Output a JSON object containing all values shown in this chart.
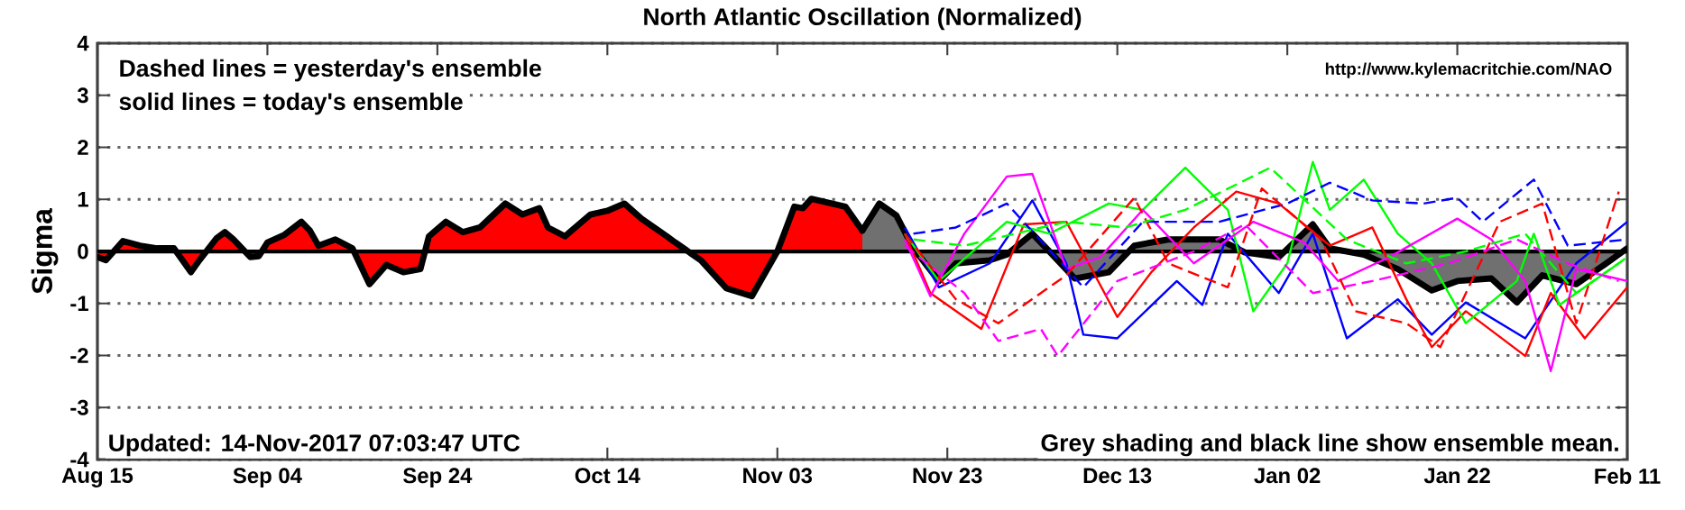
{
  "chart_data": {
    "type": "line",
    "title": "North Atlantic Oscillation (Normalized)",
    "ylabel": "Sigma",
    "xlim": [
      "2017-08-15",
      "2018-02-11"
    ],
    "xticks": [
      {
        "value": "2017-08-15",
        "label": "Aug 15"
      },
      {
        "value": "2017-09-04",
        "label": "Sep 04"
      },
      {
        "value": "2017-09-24",
        "label": "Sep 24"
      },
      {
        "value": "2017-10-14",
        "label": "Oct 14"
      },
      {
        "value": "2017-11-03",
        "label": "Nov 03"
      },
      {
        "value": "2017-11-23",
        "label": "Nov 23"
      },
      {
        "value": "2017-12-13",
        "label": "Dec 13"
      },
      {
        "value": "2018-01-02",
        "label": "Jan 02"
      },
      {
        "value": "2018-01-22",
        "label": "Jan 22"
      },
      {
        "value": "2018-02-11",
        "label": "Feb 11"
      }
    ],
    "ylim": [
      -4,
      4
    ],
    "yticks": [
      -4,
      -3,
      -2,
      -1,
      0,
      1,
      2,
      3,
      4
    ],
    "grid": "y",
    "ref_lines": [
      {
        "axis": "y",
        "value": 0,
        "color": "#000000"
      }
    ],
    "annotations": [
      "Dashed lines = yesterday's ensemble",
      "solid lines = today's ensemble",
      "http://www.kylemacritchie.com/NAO",
      "Updated: 14-Nov-2017 07:03:47 UTC",
      "Grey shading and black line show ensemble mean."
    ],
    "series": [
      {
        "type": "area",
        "color": "#ff0000",
        "x": [
          "2017-08-15",
          "2017-08-16",
          "2017-08-18",
          "2017-08-20",
          "2017-08-22",
          "2017-08-24",
          "2017-08-26",
          "2017-08-27",
          "2017-08-29",
          "2017-08-30",
          "2017-08-31",
          "2017-09-02",
          "2017-09-03",
          "2017-09-04",
          "2017-09-06",
          "2017-09-08",
          "2017-09-09",
          "2017-09-10",
          "2017-09-12",
          "2017-09-14",
          "2017-09-16",
          "2017-09-18",
          "2017-09-20",
          "2017-09-22",
          "2017-09-23",
          "2017-09-25",
          "2017-09-27",
          "2017-09-29",
          "2017-10-02",
          "2017-10-04",
          "2017-10-06",
          "2017-10-07",
          "2017-10-09",
          "2017-10-12",
          "2017-10-14",
          "2017-10-16",
          "2017-10-18",
          "2017-10-21",
          "2017-10-22",
          "2017-10-25",
          "2017-10-28",
          "2017-10-31",
          "2017-11-03",
          "2017-11-05",
          "2017-11-06",
          "2017-11-07",
          "2017-11-11",
          "2017-11-13"
        ],
        "values": [
          -0.11,
          -0.17,
          0.2,
          0.11,
          0.06,
          0.06,
          -0.4,
          -0.17,
          0.25,
          0.37,
          0.23,
          -0.11,
          -0.09,
          0.17,
          0.32,
          0.57,
          0.4,
          0.11,
          0.23,
          0.06,
          -0.63,
          -0.26,
          -0.4,
          -0.34,
          0.29,
          0.57,
          0.37,
          0.46,
          0.92,
          0.71,
          0.83,
          0.46,
          0.29,
          0.71,
          0.78,
          0.92,
          0.63,
          0.29,
          0.17,
          -0.17,
          -0.71,
          -0.86,
          0,
          0.86,
          0.83,
          1.01,
          0.86,
          0.4
        ]
      },
      {
        "type": "area",
        "color": "#707070",
        "x": [
          "2017-11-13",
          "2017-11-15",
          "2017-11-17",
          "2017-11-19",
          "2017-11-22",
          "2017-11-24",
          "2017-11-28",
          "2017-11-30",
          "2017-12-03",
          "2017-12-05",
          "2017-12-08",
          "2017-12-12",
          "2017-12-15",
          "2017-12-19",
          "2017-12-25",
          "2017-12-28",
          "2018-01-01",
          "2018-01-05",
          "2018-01-07",
          "2018-01-11",
          "2018-01-15",
          "2018-01-19",
          "2018-01-22",
          "2018-01-26",
          "2018-01-29",
          "2018-02-01",
          "2018-02-05",
          "2018-02-08",
          "2018-02-11"
        ],
        "values": [
          0.4,
          0.92,
          0.69,
          0.06,
          -0.57,
          -0.23,
          -0.17,
          -0.06,
          0.34,
          0,
          -0.52,
          -0.4,
          0.11,
          0.23,
          0.23,
          -0.02,
          -0.11,
          0.52,
          0.06,
          -0.06,
          -0.34,
          -0.75,
          -0.57,
          -0.52,
          -0.98,
          -0.46,
          -0.63,
          -0.29,
          0.06
        ]
      },
      {
        "type": "line",
        "color": "#0000ff",
        "line_style": "solid",
        "x": [
          "2017-11-18",
          "2017-11-22",
          "2017-11-28",
          "2017-12-03",
          "2017-12-07",
          "2017-12-09",
          "2017-12-13",
          "2017-12-20",
          "2017-12-23",
          "2017-12-26",
          "2018-01-01",
          "2018-01-05",
          "2018-01-09",
          "2018-01-15",
          "2018-01-19",
          "2018-01-23",
          "2018-01-30",
          "2018-02-05",
          "2018-02-11"
        ],
        "values": [
          0.46,
          -0.69,
          -0.23,
          0.98,
          -0.23,
          -1.6,
          -1.67,
          -0.57,
          -1.03,
          0.34,
          -0.8,
          0.34,
          -1.67,
          -0.92,
          -1.6,
          -0.98,
          -1.67,
          -0.23,
          0.57
        ]
      },
      {
        "type": "line",
        "color": "#ff0000",
        "line_style": "solid",
        "x": [
          "2017-11-18",
          "2017-11-21",
          "2017-11-27",
          "2017-12-02",
          "2017-12-07",
          "2017-12-13",
          "2017-12-17",
          "2017-12-22",
          "2017-12-27",
          "2018-01-01",
          "2018-01-07",
          "2018-01-12",
          "2018-01-16",
          "2018-01-19",
          "2018-01-23",
          "2018-01-30",
          "2018-02-02",
          "2018-02-06",
          "2018-02-11"
        ],
        "values": [
          0.34,
          -0.8,
          -1.49,
          0.52,
          0.57,
          -1.26,
          -0.4,
          0.46,
          1.15,
          0.92,
          0.11,
          0.46,
          -0.92,
          -1.84,
          -1.15,
          -2.01,
          -0.8,
          -1.67,
          -0.69
        ]
      },
      {
        "type": "line",
        "color": "#00ff00",
        "line_style": "solid",
        "x": [
          "2017-11-18",
          "2017-11-22",
          "2017-11-30",
          "2017-12-05",
          "2017-12-12",
          "2017-12-16",
          "2017-12-21",
          "2017-12-26",
          "2017-12-29",
          "2018-01-02",
          "2018-01-05",
          "2018-01-07",
          "2018-01-11",
          "2018-01-15",
          "2018-01-19",
          "2018-01-23",
          "2018-01-29",
          "2018-01-31",
          "2018-02-03",
          "2018-02-10"
        ],
        "values": [
          0.34,
          -0.57,
          0.57,
          0.34,
          0.92,
          0.8,
          1.61,
          0.8,
          -1.15,
          -0.23,
          1.72,
          0.8,
          1.38,
          0.34,
          -0.23,
          -1.38,
          -0.57,
          0.34,
          -1.03,
          -0.23
        ]
      },
      {
        "type": "line",
        "color": "#ff00ff",
        "line_style": "solid",
        "x": [
          "2017-11-18",
          "2017-11-21",
          "2017-11-25",
          "2017-11-30",
          "2017-12-03",
          "2017-12-07",
          "2017-12-11",
          "2017-12-16",
          "2017-12-22",
          "2017-12-29",
          "2018-01-04",
          "2018-01-08",
          "2018-01-14",
          "2018-01-22",
          "2018-01-26",
          "2018-01-30",
          "2018-02-02",
          "2018-02-05",
          "2018-02-11"
        ],
        "values": [
          0.23,
          -0.86,
          0.34,
          1.44,
          1.49,
          -0.34,
          -0.11,
          0.8,
          -0.23,
          0.57,
          0.17,
          -0.57,
          -0.11,
          0.63,
          0.23,
          -0.57,
          -2.3,
          -0.34,
          -0.57
        ]
      },
      {
        "type": "line",
        "color": "#0000ff",
        "line_style": "dashed",
        "x": [
          "2017-11-19",
          "2017-11-24",
          "2017-11-30",
          "2017-12-09",
          "2017-12-16",
          "2017-12-25",
          "2018-01-02",
          "2018-01-07",
          "2018-01-12",
          "2018-01-18",
          "2018-01-22",
          "2018-01-25",
          "2018-01-31",
          "2018-02-04",
          "2018-02-11"
        ],
        "values": [
          0.34,
          0.46,
          0.92,
          -0.69,
          0.57,
          0.57,
          0.92,
          1.32,
          0.98,
          0.92,
          1.03,
          0.57,
          1.38,
          0.11,
          0.23
        ]
      },
      {
        "type": "line",
        "color": "#ff0000",
        "line_style": "dashed",
        "x": [
          "2017-11-18",
          "2017-11-24",
          "2017-11-29",
          "2017-12-04",
          "2017-12-07",
          "2017-12-15",
          "2017-12-19",
          "2017-12-26",
          "2017-12-30",
          "2018-01-06",
          "2018-01-10",
          "2018-01-16",
          "2018-01-20",
          "2018-01-27",
          "2018-02-01",
          "2018-02-05",
          "2018-02-10"
        ],
        "values": [
          0.34,
          -0.92,
          -1.38,
          -0.8,
          -0.46,
          1.03,
          -0.23,
          -0.69,
          1.21,
          0.23,
          -1.15,
          -1.38,
          -1.84,
          0.57,
          0.92,
          -1.38,
          1.15
        ]
      },
      {
        "type": "line",
        "color": "#00ff00",
        "line_style": "dashed",
        "x": [
          "2017-11-19",
          "2017-11-25",
          "2017-12-07",
          "2017-12-14",
          "2017-12-21",
          "2017-12-31",
          "2018-01-09",
          "2018-01-16",
          "2018-01-23",
          "2018-01-30",
          "2018-02-05",
          "2018-02-11"
        ],
        "values": [
          0.23,
          0.11,
          0.57,
          0.46,
          0.8,
          1.61,
          0.23,
          -0.23,
          0,
          0.34,
          -0.8,
          -0.11
        ]
      },
      {
        "type": "line",
        "color": "#ff00ff",
        "line_style": "dashed",
        "x": [
          "2017-11-18",
          "2017-11-25",
          "2017-11-29",
          "2017-12-04",
          "2017-12-06",
          "2017-12-13",
          "2017-12-22",
          "2017-12-28",
          "2018-01-05",
          "2018-01-12",
          "2018-01-21",
          "2018-01-29",
          "2018-02-04",
          "2018-02-10"
        ],
        "values": [
          0.11,
          -0.8,
          -1.72,
          -1.49,
          -2.01,
          -0.57,
          0,
          0.52,
          -0.8,
          -0.57,
          -0.23,
          0.23,
          -0.23,
          -0.57
        ]
      }
    ]
  }
}
